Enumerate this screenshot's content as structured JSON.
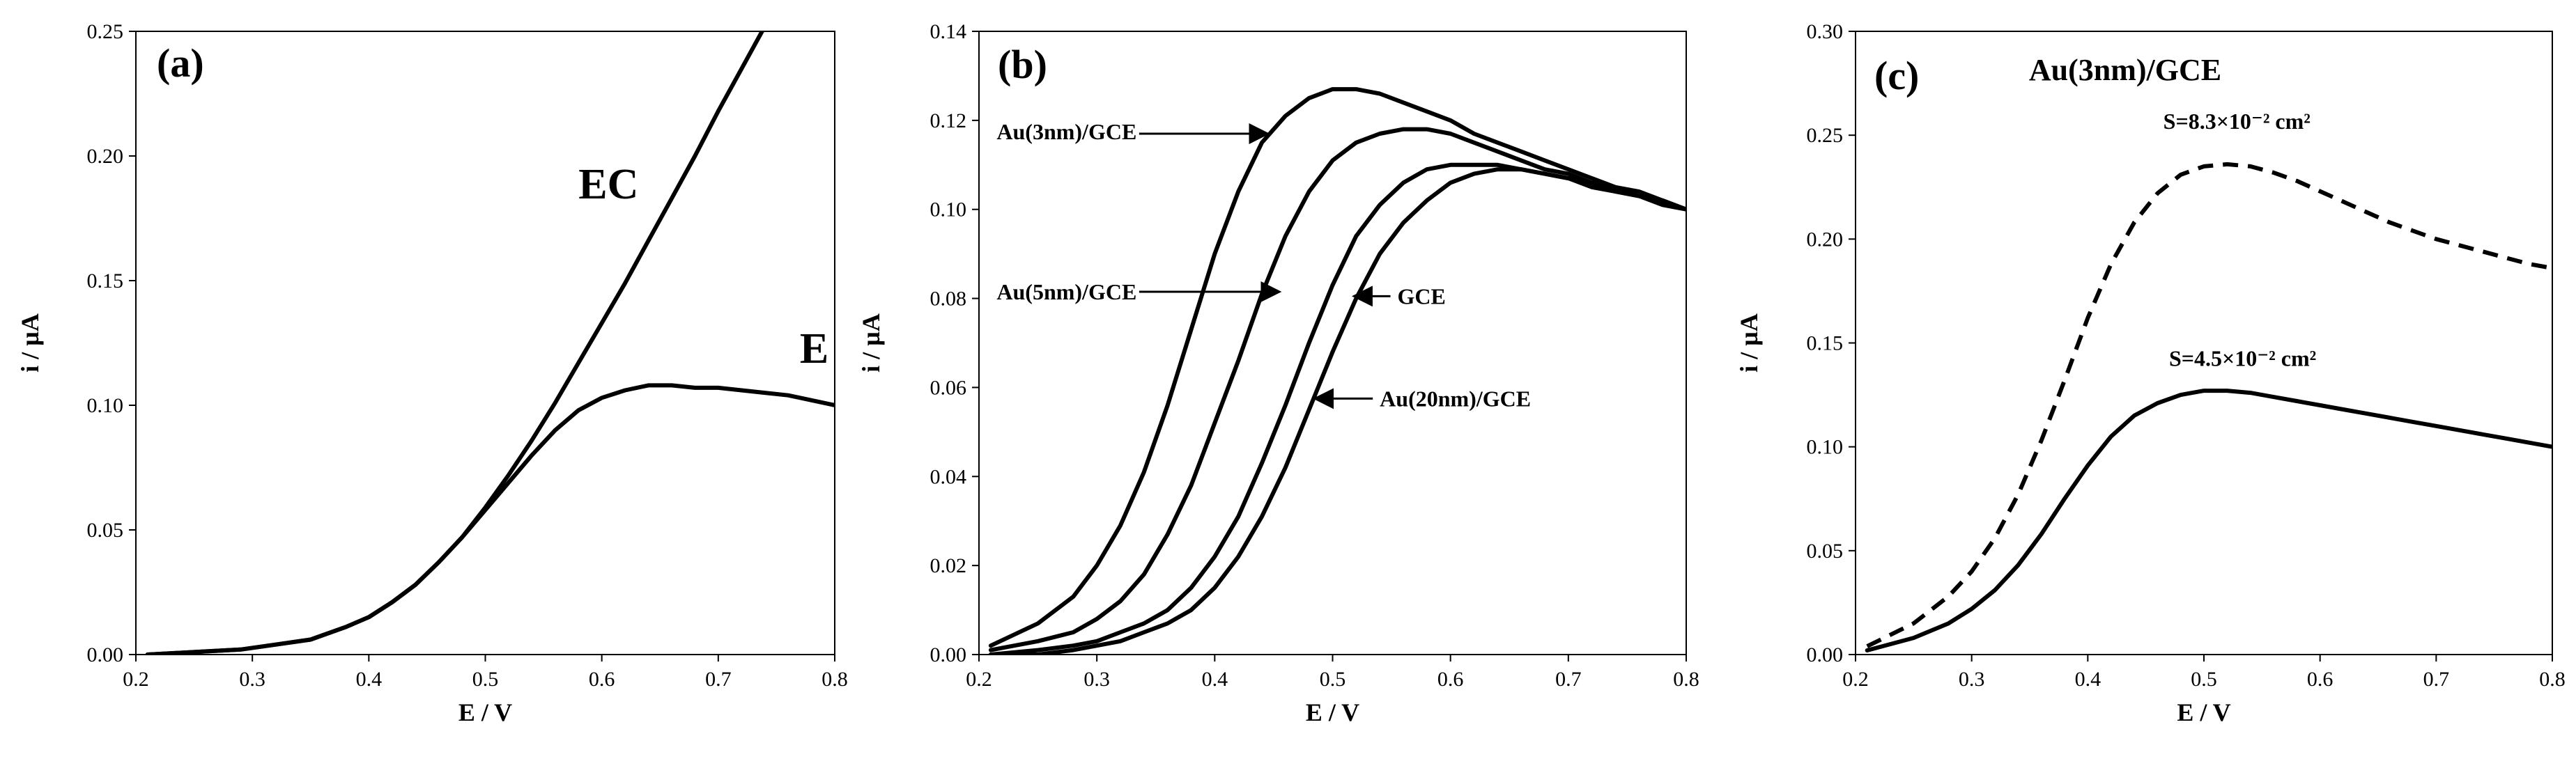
{
  "chart_data": [
    {
      "type": "line",
      "panel": "(a)",
      "xlabel": "E / V",
      "ylabel": "i / µA",
      "xlim": [
        0.2,
        0.8
      ],
      "ylim": [
        0,
        0.25
      ],
      "xticks": [
        "0.2",
        "0.3",
        "0.4",
        "0.5",
        "0.6",
        "0.7",
        "0.8"
      ],
      "yticks": [
        "0.00",
        "0.05",
        "0.10",
        "0.15",
        "0.20",
        "0.25"
      ],
      "series": [
        {
          "name": "EC",
          "style": "solid",
          "x": [
            0.21,
            0.25,
            0.29,
            0.32,
            0.35,
            0.38,
            0.4,
            0.42,
            0.44,
            0.46,
            0.48,
            0.5,
            0.52,
            0.54,
            0.56,
            0.58,
            0.6,
            0.62,
            0.64,
            0.66,
            0.68,
            0.7,
            0.72,
            0.74
          ],
          "y": [
            0.0,
            0.001,
            0.002,
            0.004,
            0.006,
            0.011,
            0.015,
            0.021,
            0.028,
            0.037,
            0.047,
            0.059,
            0.072,
            0.086,
            0.101,
            0.117,
            0.133,
            0.149,
            0.166,
            0.183,
            0.2,
            0.218,
            0.235,
            0.252
          ]
        },
        {
          "name": "E",
          "style": "solid",
          "x": [
            0.21,
            0.25,
            0.29,
            0.32,
            0.35,
            0.38,
            0.4,
            0.42,
            0.44,
            0.46,
            0.48,
            0.5,
            0.52,
            0.54,
            0.56,
            0.58,
            0.6,
            0.62,
            0.64,
            0.66,
            0.68,
            0.7,
            0.72,
            0.74,
            0.76,
            0.78,
            0.8
          ],
          "y": [
            0.0,
            0.001,
            0.002,
            0.004,
            0.006,
            0.011,
            0.015,
            0.021,
            0.028,
            0.037,
            0.047,
            0.058,
            0.069,
            0.08,
            0.09,
            0.098,
            0.103,
            0.106,
            0.108,
            0.108,
            0.107,
            0.107,
            0.106,
            0.105,
            0.104,
            0.102,
            0.1
          ]
        }
      ],
      "labels": [
        {
          "text": "EC",
          "x": 0.58,
          "y": 0.183
        },
        {
          "text": "E",
          "x": 0.77,
          "y": 0.117
        }
      ]
    },
    {
      "type": "line",
      "panel": "(b)",
      "xlabel": "E / V",
      "ylabel": "i / µA",
      "xlim": [
        0.2,
        0.8
      ],
      "ylim": [
        0,
        0.14
      ],
      "xticks": [
        "0.2",
        "0.3",
        "0.4",
        "0.5",
        "0.6",
        "0.7",
        "0.8"
      ],
      "yticks": [
        "0.00",
        "0.02",
        "0.04",
        "0.06",
        "0.08",
        "0.10",
        "0.12",
        "0.14"
      ],
      "series": [
        {
          "name": "Au(3nm)/GCE",
          "style": "solid",
          "x": [
            0.21,
            0.25,
            0.28,
            0.3,
            0.32,
            0.34,
            0.36,
            0.38,
            0.4,
            0.42,
            0.44,
            0.46,
            0.48,
            0.5,
            0.52,
            0.54,
            0.56,
            0.58,
            0.6,
            0.62,
            0.64,
            0.66,
            0.68,
            0.7,
            0.72,
            0.74,
            0.76,
            0.78,
            0.8
          ],
          "y": [
            0.002,
            0.007,
            0.013,
            0.02,
            0.029,
            0.041,
            0.056,
            0.073,
            0.09,
            0.104,
            0.115,
            0.121,
            0.125,
            0.127,
            0.127,
            0.126,
            0.124,
            0.122,
            0.12,
            0.117,
            0.115,
            0.113,
            0.111,
            0.109,
            0.107,
            0.105,
            0.104,
            0.102,
            0.1
          ]
        },
        {
          "name": "Au(5nm)/GCE",
          "style": "solid",
          "x": [
            0.21,
            0.25,
            0.28,
            0.3,
            0.32,
            0.34,
            0.36,
            0.38,
            0.4,
            0.42,
            0.44,
            0.46,
            0.48,
            0.5,
            0.52,
            0.54,
            0.56,
            0.58,
            0.6,
            0.62,
            0.64,
            0.66,
            0.68,
            0.7,
            0.72,
            0.74,
            0.76,
            0.78,
            0.8
          ],
          "y": [
            0.001,
            0.003,
            0.005,
            0.008,
            0.012,
            0.018,
            0.027,
            0.038,
            0.052,
            0.066,
            0.081,
            0.094,
            0.104,
            0.111,
            0.115,
            0.117,
            0.118,
            0.118,
            0.117,
            0.115,
            0.113,
            0.111,
            0.109,
            0.108,
            0.106,
            0.105,
            0.103,
            0.102,
            0.1
          ]
        },
        {
          "name": "GCE",
          "style": "solid",
          "x": [
            0.21,
            0.25,
            0.28,
            0.3,
            0.32,
            0.34,
            0.36,
            0.38,
            0.4,
            0.42,
            0.44,
            0.46,
            0.48,
            0.5,
            0.52,
            0.54,
            0.56,
            0.58,
            0.6,
            0.62,
            0.64,
            0.66,
            0.68,
            0.7,
            0.72,
            0.74,
            0.76,
            0.78,
            0.8
          ],
          "y": [
            0.0,
            0.001,
            0.002,
            0.003,
            0.005,
            0.007,
            0.01,
            0.015,
            0.022,
            0.031,
            0.043,
            0.056,
            0.07,
            0.083,
            0.094,
            0.101,
            0.106,
            0.109,
            0.11,
            0.11,
            0.11,
            0.109,
            0.108,
            0.107,
            0.106,
            0.104,
            0.103,
            0.102,
            0.1
          ]
        },
        {
          "name": "Au(20nm)/GCE",
          "style": "solid",
          "x": [
            0.21,
            0.25,
            0.28,
            0.3,
            0.32,
            0.34,
            0.36,
            0.38,
            0.4,
            0.42,
            0.44,
            0.46,
            0.48,
            0.5,
            0.52,
            0.54,
            0.56,
            0.58,
            0.6,
            0.62,
            0.64,
            0.66,
            0.68,
            0.7,
            0.72,
            0.74,
            0.76,
            0.78,
            0.8
          ],
          "y": [
            0.0,
            0.0,
            0.001,
            0.002,
            0.003,
            0.005,
            0.007,
            0.01,
            0.015,
            0.022,
            0.031,
            0.042,
            0.055,
            0.068,
            0.08,
            0.09,
            0.097,
            0.102,
            0.106,
            0.108,
            0.109,
            0.109,
            0.108,
            0.107,
            0.105,
            0.104,
            0.103,
            0.101,
            0.1
          ]
        }
      ],
      "annotations": [
        {
          "text": "Au(3nm)/GCE",
          "label_x": 0.215,
          "label_y": 0.1175,
          "arrow_to_x": 0.445,
          "arrow_to_y": 0.117
        },
        {
          "text": "Au(5nm)/GCE",
          "label_x": 0.215,
          "label_y": 0.0815,
          "arrow_to_x": 0.455,
          "arrow_to_y": 0.0815
        },
        {
          "text": "GCE",
          "label_x": 0.555,
          "label_y": 0.0805,
          "arrow_to_x": 0.518,
          "arrow_to_y": 0.0805
        },
        {
          "text": "Au(20nm)/GCE",
          "label_x": 0.54,
          "label_y": 0.0575,
          "arrow_to_x": 0.485,
          "arrow_to_y": 0.0575
        }
      ]
    },
    {
      "type": "line",
      "panel": "(c)",
      "title": "Au(3nm)/GCE",
      "xlabel": "E / V",
      "ylabel": "i / µA",
      "xlim": [
        0.2,
        0.8
      ],
      "ylim": [
        0,
        0.3
      ],
      "xticks": [
        "0.2",
        "0.3",
        "0.4",
        "0.5",
        "0.6",
        "0.7",
        "0.8"
      ],
      "yticks": [
        "0.00",
        "0.05",
        "0.10",
        "0.15",
        "0.20",
        "0.25",
        "0.30"
      ],
      "series": [
        {
          "name": "S=8.3×10⁻² cm²",
          "style": "dashed",
          "x": [
            0.21,
            0.25,
            0.28,
            0.3,
            0.32,
            0.34,
            0.36,
            0.38,
            0.4,
            0.42,
            0.44,
            0.46,
            0.48,
            0.5,
            0.52,
            0.54,
            0.56,
            0.58,
            0.6,
            0.62,
            0.64,
            0.66,
            0.68,
            0.7,
            0.72,
            0.74,
            0.76,
            0.78,
            0.8
          ],
          "y": [
            0.004,
            0.015,
            0.028,
            0.04,
            0.056,
            0.077,
            0.103,
            0.132,
            0.162,
            0.188,
            0.208,
            0.222,
            0.231,
            0.235,
            0.236,
            0.235,
            0.232,
            0.228,
            0.223,
            0.218,
            0.213,
            0.208,
            0.204,
            0.2,
            0.197,
            0.194,
            0.191,
            0.188,
            0.186
          ]
        },
        {
          "name": "S=4.5×10⁻² cm²",
          "style": "solid",
          "x": [
            0.21,
            0.25,
            0.28,
            0.3,
            0.32,
            0.34,
            0.36,
            0.38,
            0.4,
            0.42,
            0.44,
            0.46,
            0.48,
            0.5,
            0.52,
            0.54,
            0.56,
            0.58,
            0.6,
            0.62,
            0.64,
            0.66,
            0.68,
            0.7,
            0.72,
            0.74,
            0.76,
            0.78,
            0.8
          ],
          "y": [
            0.002,
            0.008,
            0.015,
            0.022,
            0.031,
            0.043,
            0.058,
            0.075,
            0.091,
            0.105,
            0.115,
            0.121,
            0.125,
            0.127,
            0.127,
            0.126,
            0.124,
            0.122,
            0.12,
            0.118,
            0.116,
            0.114,
            0.112,
            0.11,
            0.108,
            0.106,
            0.104,
            0.102,
            0.1
          ]
        }
      ],
      "labels": [
        {
          "text": "S=8.3×10⁻² cm²",
          "x": 0.465,
          "y": 0.253
        },
        {
          "text": "S=4.5×10⁻² cm²",
          "x": 0.47,
          "y": 0.139
        }
      ]
    }
  ]
}
